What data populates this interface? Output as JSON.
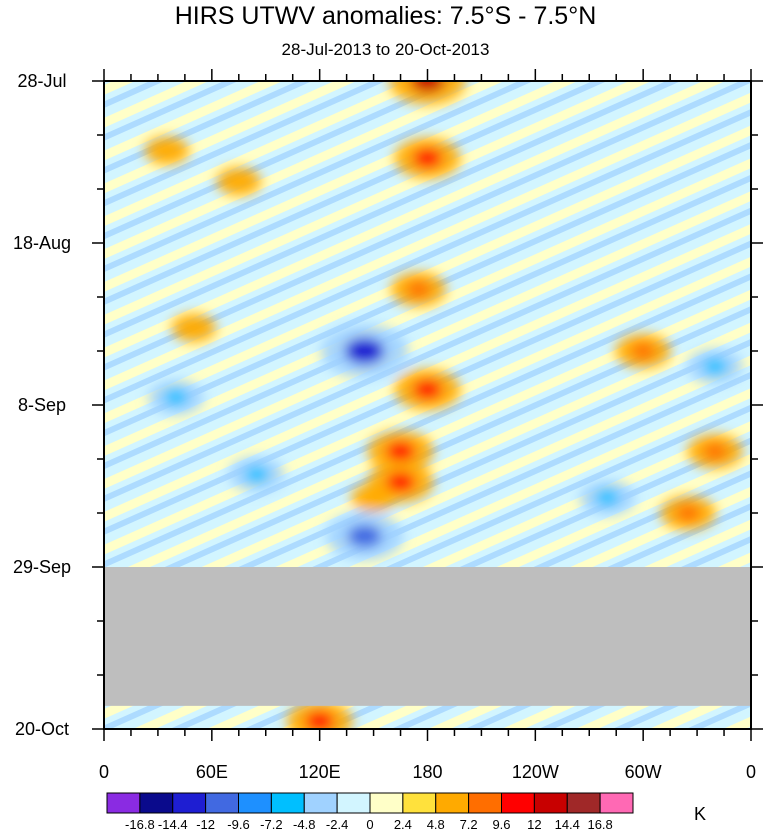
{
  "chart_data": {
    "type": "heatmap",
    "title": "HIRS UTWV anomalies: 7.5°S - 7.5°N",
    "subtitle": "28-Jul-2013 to 20-Oct-2013",
    "x_ticks": [
      "0",
      "60E",
      "120E",
      "180",
      "120W",
      "60W",
      "0"
    ],
    "y_ticks": [
      "28-Jul",
      "18-Aug",
      "8-Sep",
      "29-Sep",
      "20-Oct"
    ],
    "units": "K",
    "colorbar_levels": [
      "-16.8",
      "-14.4",
      "-12",
      "-9.6",
      "-7.2",
      "-4.8",
      "-2.4",
      "0",
      "2.4",
      "4.8",
      "7.2",
      "9.6",
      "12",
      "14.4",
      "16.8"
    ],
    "colorbar_colors": [
      "#8a2be2",
      "#0a0a8c",
      "#1e1ed2",
      "#4169e1",
      "#1e90ff",
      "#00bfff",
      "#a0d2ff",
      "#d2f5ff",
      "#ffffc8",
      "#ffe13c",
      "#ffaa00",
      "#ff6e00",
      "#ff0000",
      "#c80000",
      "#a02828",
      "#ff69b4"
    ],
    "missing_data_color": "#bebebe",
    "missing_data_range": [
      "29-Sep",
      "~17-Oct"
    ],
    "anomaly_features": [
      {
        "lon": 180,
        "date": "28-Jul",
        "value": 12
      },
      {
        "lon": 180,
        "date": "7-Aug",
        "value": 9.6
      },
      {
        "lon": 175,
        "date": "24-Aug",
        "value": 7.2
      },
      {
        "lon": 145,
        "date": "1-Sep",
        "value": -14.4
      },
      {
        "lon": 180,
        "date": "6-Sep",
        "value": 9.6
      },
      {
        "lon": 165,
        "date": "14-Sep",
        "value": 9.6
      },
      {
        "lon": 165,
        "date": "18-Sep",
        "value": 9.6
      },
      {
        "lon": 150,
        "date": "20-Sep",
        "value": 4.8
      },
      {
        "lon": 145,
        "date": "25-Sep",
        "value": -12
      },
      {
        "lon": 120,
        "date": "19-Oct",
        "value": 9.6
      },
      {
        "lon": 75,
        "date": "10-Aug",
        "value": 4.8
      },
      {
        "lon": 35,
        "date": "6-Aug",
        "value": 4.8
      },
      {
        "lon": 50,
        "date": "29-Aug",
        "value": 4.8
      },
      {
        "lon": -60,
        "date": "1-Sep",
        "value": 7.2
      },
      {
        "lon": -20,
        "date": "14-Sep",
        "value": 7.2
      },
      {
        "lon": -35,
        "date": "22-Sep",
        "value": 7.2
      },
      {
        "lon": -80,
        "date": "20-Sep",
        "value": -7.2
      },
      {
        "lon": -20,
        "date": "3-Sep",
        "value": -7.2
      },
      {
        "lon": 40,
        "date": "7-Sep",
        "value": -7.2
      },
      {
        "lon": 85,
        "date": "17-Sep",
        "value": -7.2
      }
    ]
  }
}
